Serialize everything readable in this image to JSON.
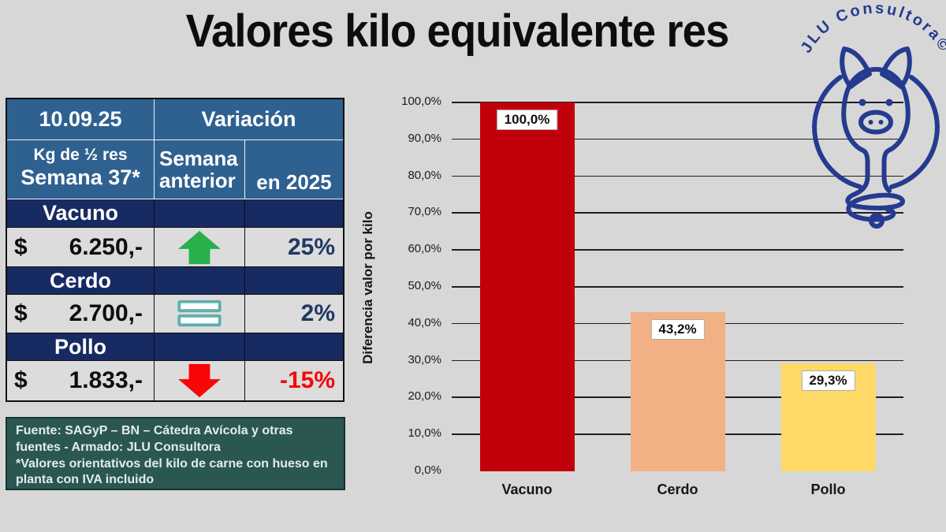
{
  "title": "Valores kilo equivalente res",
  "logo": {
    "text": "JLU Consultora©"
  },
  "table": {
    "date": "10.09.25",
    "variation_header": "Variación",
    "col1_header_line1": "Kg de ½ res",
    "col1_header_line2": "Semana 37*",
    "col2_header": "Semana anterior",
    "col3_header": "en 2025",
    "rows": [
      {
        "name": "Vacuno",
        "currency": "$",
        "price": "6.250,-",
        "trend": "up",
        "pct": "25%"
      },
      {
        "name": "Cerdo",
        "currency": "$",
        "price": "2.700,-",
        "trend": "equal",
        "pct": "2%"
      },
      {
        "name": "Pollo",
        "currency": "$",
        "price": "1.833,-",
        "trend": "down",
        "pct": "-15%"
      }
    ]
  },
  "footer": {
    "source": "Fuente: SAGyP – BN – Cátedra Avícola y otras fuentes - Armado: JLU Consultora",
    "note": "*Valores orientativos del kilo de carne con hueso en planta con IVA incluido"
  },
  "chart_data": {
    "type": "bar",
    "categories": [
      "Vacuno",
      "Cerdo",
      "Pollo"
    ],
    "values": [
      100.0,
      43.2,
      29.3
    ],
    "data_labels": [
      "100,0%",
      "43,2%",
      "29,3%"
    ],
    "bar_colors": [
      "#C2000B",
      "#F2B184",
      "#FFD966"
    ],
    "ylabel": "Diferencia valor por kilo",
    "xlabel": "",
    "ylim": [
      0,
      100
    ],
    "ytick_step": 10,
    "yticks": [
      "0,0%",
      "10,0%",
      "20,0%",
      "30,0%",
      "40,0%",
      "50,0%",
      "60,0%",
      "70,0%",
      "80,0%",
      "90,0%",
      "100,0%"
    ],
    "grid": true,
    "legend": false
  },
  "colors": {
    "page_bg": "#D7D7D7",
    "header_blue": "#2F6190",
    "navy": "#172A62",
    "cell_bg": "#DCDCDC",
    "pct_blue": "#1F3864",
    "neg_red": "#F50505",
    "up_green": "#27B04B",
    "down_red": "#FA0505",
    "equals_teal": "#63ADAD",
    "footer_bg": "#2B5753",
    "footer_text": "#E3EDEA",
    "logo_navy": "#243B8F",
    "grid_line": "#1F1F1F"
  }
}
